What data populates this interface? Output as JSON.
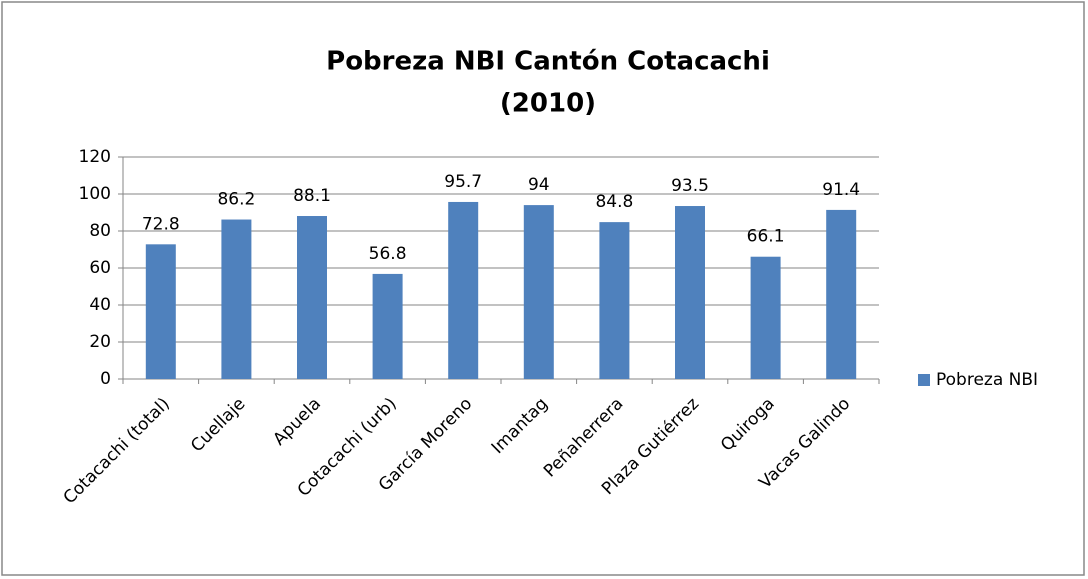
{
  "chart_data": {
    "type": "bar",
    "title": [
      "Pobreza NBI Cantón Cotacachi",
      "(2010)"
    ],
    "categories": [
      "Cotacachi  (total)",
      "Cuellaje",
      "Apuela",
      "Cotacachi (urb)",
      "García Moreno",
      "Imantag",
      "Peñaherrera",
      "Plaza Gutiérrez",
      "Quiroga",
      "Vacas Galindo"
    ],
    "series": [
      {
        "name": "Pobreza NBI",
        "color": "#4f81bd",
        "values": [
          72.8,
          86.2,
          88.1,
          56.8,
          95.7,
          94,
          84.8,
          93.5,
          66.1,
          91.4
        ]
      }
    ],
    "ylim": [
      0,
      120
    ],
    "yticks": [
      0,
      20,
      40,
      60,
      80,
      100,
      120
    ],
    "grid": true,
    "legend": "right"
  }
}
